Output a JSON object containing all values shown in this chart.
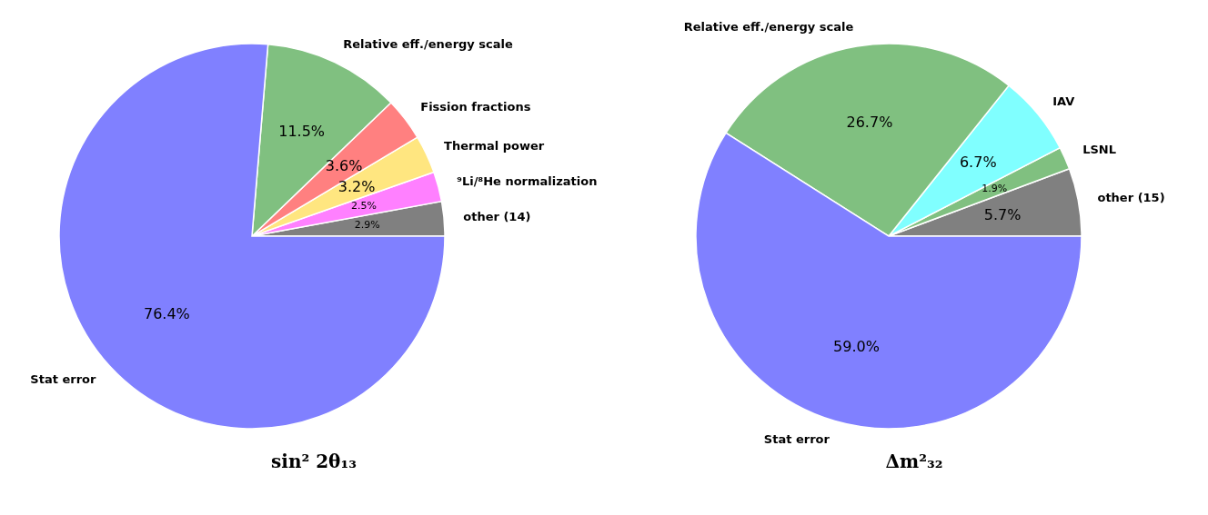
{
  "chart_data": [
    {
      "type": "pie",
      "title": "sin² 2θ₁₃",
      "categories": [
        "other (14)",
        "⁹Li/⁸He normalization",
        "Thermal power",
        "Fission fractions",
        "Relative eff./energy scale",
        "Stat error"
      ],
      "values": [
        2.9,
        2.5,
        3.2,
        3.6,
        11.5,
        76.4
      ],
      "value_labels": [
        "2.9%",
        "2.5%",
        "3.2%",
        "3.6%",
        "11.5%",
        "76.4%"
      ],
      "colors": [
        "#808080",
        "#ff80ff",
        "#ffe680",
        "#ff8080",
        "#80c080",
        "#8080ff"
      ]
    },
    {
      "type": "pie",
      "title": "Δm²₃₂",
      "categories": [
        "other (15)",
        "LSNL",
        "IAV",
        "Relative eff./energy scale",
        "Stat error"
      ],
      "values": [
        5.7,
        1.9,
        6.7,
        26.7,
        59.0
      ],
      "value_labels": [
        "5.7%",
        "1.9%",
        "6.7%",
        "26.7%",
        "59.0%"
      ],
      "colors": [
        "#808080",
        "#80c080",
        "#80ffff",
        "#80c080",
        "#8080ff"
      ]
    }
  ]
}
